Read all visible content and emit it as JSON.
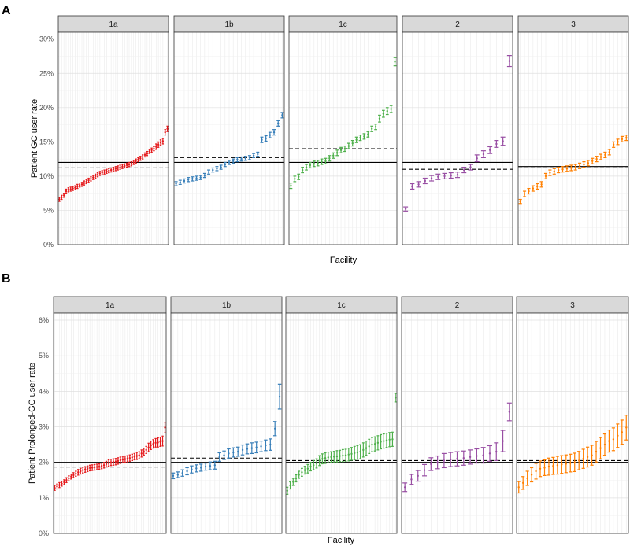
{
  "figure": {
    "panel_letters": [
      "A",
      "B"
    ],
    "xlabel": "Facility"
  },
  "colors": {
    "1a": "#E41A1C",
    "1b": "#377EB8",
    "1c": "#4DAF4A",
    "2": "#984EA3",
    "3": "#FF7F00"
  },
  "chart_data": [
    {
      "type": "scatter",
      "letter": "A",
      "ylabel": "Patient GC user rate",
      "xlabel": "Facility",
      "ylim": [
        0,
        31
      ],
      "yticks": [
        0,
        5,
        10,
        15,
        20,
        25,
        30
      ],
      "ytick_labels": [
        "0%",
        "5%",
        "10%",
        "15%",
        "20%",
        "25%",
        "30%"
      ],
      "grid": true,
      "facets": [
        {
          "name": "1a",
          "overall": 12.0,
          "mean": 11.2,
          "err": [
            0.3,
            0.3,
            0.3,
            0.3,
            0.3,
            0.3,
            0.3,
            0.3,
            0.3,
            0.3,
            0.3,
            0.3,
            0.3,
            0.3,
            0.3,
            0.3,
            0.3,
            0.3,
            0.3,
            0.3,
            0.3,
            0.3,
            0.3,
            0.3,
            0.3,
            0.3,
            0.3,
            0.3,
            0.3,
            0.3,
            0.3,
            0.3,
            0.3,
            0.3,
            0.3,
            0.3,
            0.3,
            0.3,
            0.3,
            0.3,
            0.3,
            0.3,
            0.3,
            0.4,
            0.4,
            0.4,
            0.4,
            0.4,
            0.4
          ],
          "values": [
            6.6,
            6.9,
            7.2,
            7.8,
            8.0,
            8.1,
            8.2,
            8.3,
            8.5,
            8.7,
            8.8,
            9.0,
            9.2,
            9.4,
            9.6,
            9.8,
            10.0,
            10.2,
            10.4,
            10.5,
            10.6,
            10.7,
            10.8,
            10.9,
            11.0,
            11.1,
            11.2,
            11.3,
            11.4,
            11.5,
            11.6,
            11.7,
            11.8,
            12.0,
            12.2,
            12.4,
            12.6,
            12.8,
            13.1,
            13.3,
            13.6,
            13.8,
            14.0,
            14.3,
            14.6,
            14.9,
            15.1,
            16.4,
            16.9
          ]
        },
        {
          "name": "1b",
          "overall": 12.0,
          "mean": 12.7,
          "err": [
            0.3,
            0.3,
            0.3,
            0.3,
            0.3,
            0.3,
            0.3,
            0.3,
            0.3,
            0.3,
            0.3,
            0.3,
            0.3,
            0.3,
            0.3,
            0.3,
            0.3,
            0.3,
            0.3,
            0.3,
            0.3,
            0.4,
            0.4,
            0.4,
            0.4,
            0.4,
            0.4
          ],
          "values": [
            8.9,
            9.1,
            9.3,
            9.5,
            9.6,
            9.7,
            9.8,
            10.1,
            10.6,
            10.9,
            11.1,
            11.3,
            11.7,
            12.0,
            12.2,
            12.4,
            12.5,
            12.6,
            12.7,
            13.0,
            13.2,
            15.3,
            15.5,
            16.0,
            16.4,
            17.7,
            18.9
          ]
        },
        {
          "name": "1c",
          "overall": 12.0,
          "mean": 14.0,
          "err": [
            0.4,
            0.4,
            0.4,
            0.4,
            0.4,
            0.4,
            0.4,
            0.4,
            0.4,
            0.4,
            0.4,
            0.4,
            0.4,
            0.4,
            0.4,
            0.4,
            0.4,
            0.4,
            0.4,
            0.4,
            0.4,
            0.4,
            0.4,
            0.5,
            0.5,
            0.5,
            0.5,
            0.6
          ],
          "values": [
            8.6,
            9.6,
            9.9,
            10.9,
            11.3,
            11.6,
            11.8,
            11.9,
            12.1,
            12.2,
            12.6,
            13.0,
            13.4,
            13.8,
            14.0,
            14.4,
            14.8,
            15.3,
            15.6,
            15.8,
            16.1,
            16.9,
            17.2,
            18.4,
            19.1,
            19.5,
            19.8,
            26.7
          ]
        },
        {
          "name": "2",
          "overall": 12.0,
          "mean": 11.0,
          "err": [
            0.3,
            0.4,
            0.4,
            0.4,
            0.4,
            0.4,
            0.4,
            0.4,
            0.4,
            0.4,
            0.4,
            0.5,
            0.5,
            0.5,
            0.5,
            0.6,
            0.8
          ],
          "values": [
            5.2,
            8.5,
            8.8,
            9.3,
            9.7,
            9.9,
            10.0,
            10.1,
            10.2,
            10.9,
            11.3,
            12.6,
            13.2,
            13.8,
            14.7,
            15.1,
            26.8
          ]
        },
        {
          "name": "3",
          "overall": 11.4,
          "mean": 11.2,
          "err": [
            0.3,
            0.4,
            0.4,
            0.4,
            0.4,
            0.4,
            0.4,
            0.4,
            0.4,
            0.4,
            0.4,
            0.4,
            0.4,
            0.4,
            0.4,
            0.4,
            0.4,
            0.4,
            0.4,
            0.4,
            0.4,
            0.4,
            0.4,
            0.4,
            0.4,
            0.4
          ],
          "values": [
            6.3,
            7.4,
            7.8,
            8.2,
            8.5,
            8.8,
            10.0,
            10.5,
            10.7,
            10.9,
            11.0,
            11.1,
            11.2,
            11.3,
            11.5,
            11.7,
            11.9,
            12.2,
            12.5,
            12.8,
            13.1,
            13.5,
            14.6,
            15.0,
            15.4,
            15.6
          ]
        }
      ]
    },
    {
      "type": "scatter",
      "letter": "B",
      "ylabel": "Patient Prolonged-GC user rate",
      "xlabel": "Facility",
      "ylim": [
        0,
        6.2
      ],
      "yticks": [
        0,
        1,
        2,
        3,
        4,
        5,
        6
      ],
      "ytick_labels": [
        "0%",
        "1%",
        "2%",
        "3%",
        "4%",
        "5%",
        "6%"
      ],
      "grid": true,
      "facets": [
        {
          "name": "1a",
          "overall": 2.0,
          "mean": 1.87,
          "err": [
            0.07,
            0.07,
            0.07,
            0.07,
            0.07,
            0.07,
            0.07,
            0.07,
            0.07,
            0.07,
            0.08,
            0.08,
            0.08,
            0.08,
            0.08,
            0.08,
            0.08,
            0.08,
            0.08,
            0.08,
            0.08,
            0.08,
            0.08,
            0.09,
            0.09,
            0.09,
            0.09,
            0.09,
            0.09,
            0.09,
            0.09,
            0.09,
            0.09,
            0.09,
            0.09,
            0.1,
            0.1,
            0.1,
            0.1,
            0.1,
            0.12,
            0.12,
            0.12,
            0.12,
            0.13,
            0.13,
            0.14,
            0.15
          ],
          "values": [
            1.28,
            1.32,
            1.36,
            1.4,
            1.44,
            1.5,
            1.55,
            1.6,
            1.64,
            1.68,
            1.72,
            1.75,
            1.78,
            1.8,
            1.82,
            1.84,
            1.85,
            1.86,
            1.87,
            1.88,
            1.9,
            1.92,
            1.95,
            1.98,
            2.0,
            2.01,
            2.02,
            2.04,
            2.06,
            2.08,
            2.09,
            2.1,
            2.12,
            2.14,
            2.16,
            2.18,
            2.2,
            2.25,
            2.3,
            2.35,
            2.42,
            2.48,
            2.52,
            2.55,
            2.56,
            2.58,
            2.6,
            2.98
          ]
        },
        {
          "name": "1b",
          "overall": 2.0,
          "mean": 2.12,
          "err": [
            0.08,
            0.08,
            0.09,
            0.1,
            0.1,
            0.1,
            0.1,
            0.1,
            0.11,
            0.11,
            0.12,
            0.12,
            0.13,
            0.13,
            0.13,
            0.14,
            0.14,
            0.15,
            0.15,
            0.15,
            0.15,
            0.16,
            0.2,
            0.35
          ],
          "values": [
            1.62,
            1.65,
            1.7,
            1.75,
            1.8,
            1.83,
            1.85,
            1.88,
            1.9,
            1.92,
            2.15,
            2.2,
            2.25,
            2.28,
            2.3,
            2.35,
            2.38,
            2.4,
            2.42,
            2.45,
            2.48,
            2.5,
            2.95,
            3.85
          ]
        },
        {
          "name": "1c",
          "overall": 2.0,
          "mean": 2.05,
          "err": [
            0.1,
            0.1,
            0.1,
            0.1,
            0.1,
            0.11,
            0.11,
            0.12,
            0.12,
            0.13,
            0.13,
            0.14,
            0.14,
            0.15,
            0.15,
            0.15,
            0.15,
            0.16,
            0.16,
            0.17,
            0.17,
            0.18,
            0.18,
            0.19,
            0.19,
            0.2,
            0.2,
            0.2,
            0.2,
            0.2,
            0.2,
            0.2,
            0.2,
            0.2,
            0.2,
            0.2,
            0.2,
            0.12
          ],
          "values": [
            1.2,
            1.35,
            1.45,
            1.55,
            1.65,
            1.72,
            1.78,
            1.82,
            1.88,
            1.92,
            1.97,
            2.05,
            2.1,
            2.12,
            2.14,
            2.15,
            2.16,
            2.17,
            2.18,
            2.19,
            2.2,
            2.22,
            2.24,
            2.26,
            2.28,
            2.3,
            2.35,
            2.4,
            2.45,
            2.5,
            2.52,
            2.55,
            2.58,
            2.6,
            2.62,
            2.64,
            2.65,
            3.82
          ]
        },
        {
          "name": "2",
          "overall": 2.0,
          "mean": 2.05,
          "err": [
            0.12,
            0.14,
            0.15,
            0.16,
            0.18,
            0.18,
            0.2,
            0.2,
            0.2,
            0.2,
            0.2,
            0.2,
            0.22,
            0.22,
            0.25,
            0.3,
            0.25
          ],
          "values": [
            1.3,
            1.52,
            1.62,
            1.78,
            1.95,
            2.0,
            2.05,
            2.08,
            2.1,
            2.12,
            2.15,
            2.18,
            2.2,
            2.25,
            2.3,
            2.6,
            3.42
          ]
        },
        {
          "name": "3",
          "overall": 2.0,
          "mean": 2.05,
          "err": [
            0.16,
            0.18,
            0.2,
            0.2,
            0.22,
            0.22,
            0.22,
            0.24,
            0.24,
            0.25,
            0.25,
            0.25,
            0.25,
            0.26,
            0.26,
            0.27,
            0.28,
            0.28,
            0.29,
            0.3,
            0.3,
            0.31,
            0.32,
            0.33,
            0.34,
            0.35
          ],
          "values": [
            1.3,
            1.42,
            1.55,
            1.65,
            1.75,
            1.82,
            1.85,
            1.88,
            1.9,
            1.92,
            1.94,
            1.96,
            1.98,
            2.0,
            2.05,
            2.1,
            2.15,
            2.2,
            2.3,
            2.4,
            2.5,
            2.6,
            2.65,
            2.75,
            2.85,
            2.98
          ]
        }
      ]
    }
  ]
}
